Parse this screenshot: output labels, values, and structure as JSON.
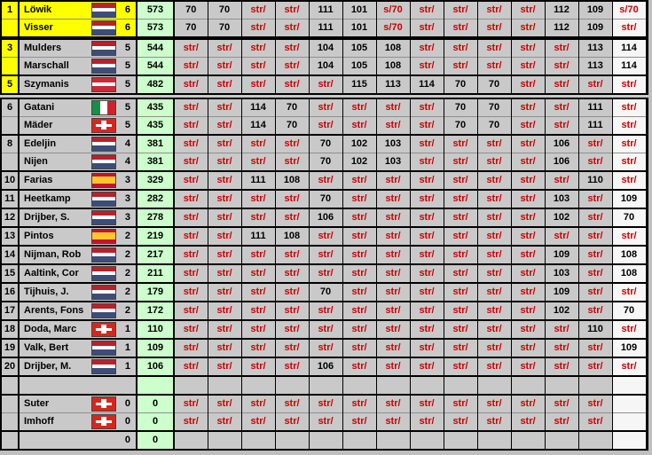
{
  "colors": {
    "page_bg": "#bfbfbf",
    "cell_grey": "#c9c9c9",
    "last_column_bg": "#f6f6f6",
    "score_green": "#ccffcc",
    "highlight_yellow": "#ffff00",
    "struck_red": "#cc0000",
    "text_black": "#000000"
  },
  "table": {
    "num_round_columns": 14,
    "struck_label": "str/",
    "rows": [
      {
        "rank": "1",
        "name": "Löwik",
        "flag": "nl",
        "count": "6",
        "score": "573",
        "rounds": [
          "70",
          "70",
          "str/",
          "str/",
          "111",
          "101",
          "s/70",
          "str/",
          "str/",
          "str/",
          "str/",
          "112",
          "109",
          "s/70"
        ],
        "highlight": "full",
        "sep": "none"
      },
      {
        "rank": "",
        "name": "Visser",
        "flag": "nl",
        "count": "6",
        "score": "573",
        "rounds": [
          "70",
          "70",
          "str/",
          "str/",
          "111",
          "101",
          "s/70",
          "str/",
          "str/",
          "str/",
          "str/",
          "112",
          "109",
          "str/"
        ],
        "highlight": "full",
        "sep": "pair"
      },
      {
        "rank": "3",
        "name": "Mulders",
        "flag": "nl",
        "count": "5",
        "score": "544",
        "rounds": [
          "str/",
          "str/",
          "str/",
          "str/",
          "104",
          "105",
          "108",
          "str/",
          "str/",
          "str/",
          "str/",
          "str/",
          "113",
          "114"
        ],
        "highlight": "rank",
        "sep": "thick"
      },
      {
        "rank": "",
        "name": "Marschall",
        "flag": "nl",
        "count": "5",
        "score": "544",
        "rounds": [
          "str/",
          "str/",
          "str/",
          "str/",
          "104",
          "105",
          "108",
          "str/",
          "str/",
          "str/",
          "str/",
          "str/",
          "113",
          "114"
        ],
        "highlight": "rank",
        "sep": "pair"
      },
      {
        "rank": "5",
        "name": "Szymanis",
        "flag": "at",
        "count": "5",
        "score": "482",
        "rounds": [
          "str/",
          "str/",
          "str/",
          "str/",
          "str/",
          "115",
          "113",
          "114",
          "70",
          "70",
          "str/",
          "str/",
          "str/",
          "str/"
        ],
        "highlight": "rank",
        "sep": "black"
      },
      {
        "rank": "6",
        "name": "Gatani",
        "flag": "it",
        "count": "5",
        "score": "435",
        "rounds": [
          "str/",
          "str/",
          "114",
          "70",
          "str/",
          "str/",
          "str/",
          "str/",
          "70",
          "70",
          "str/",
          "str/",
          "111",
          "str/"
        ],
        "highlight": "none",
        "sep": "double"
      },
      {
        "rank": "",
        "name": "Mäder",
        "flag": "ch",
        "count": "5",
        "score": "435",
        "rounds": [
          "str/",
          "str/",
          "114",
          "70",
          "str/",
          "str/",
          "str/",
          "str/",
          "70",
          "70",
          "str/",
          "str/",
          "111",
          "str/"
        ],
        "highlight": "none",
        "sep": "pair"
      },
      {
        "rank": "8",
        "name": "Edeljin",
        "flag": "nl",
        "count": "4",
        "score": "381",
        "rounds": [
          "str/",
          "str/",
          "str/",
          "str/",
          "70",
          "102",
          "103",
          "str/",
          "str/",
          "str/",
          "str/",
          "106",
          "str/",
          "str/"
        ],
        "highlight": "none",
        "sep": "black"
      },
      {
        "rank": "",
        "name": "Nijen",
        "flag": "nl",
        "count": "4",
        "score": "381",
        "rounds": [
          "str/",
          "str/",
          "str/",
          "str/",
          "70",
          "102",
          "103",
          "str/",
          "str/",
          "str/",
          "str/",
          "106",
          "str/",
          "str/"
        ],
        "highlight": "none",
        "sep": "pair"
      },
      {
        "rank": "10",
        "name": "Farias",
        "flag": "es",
        "count": "3",
        "score": "329",
        "rounds": [
          "str/",
          "str/",
          "111",
          "108",
          "str/",
          "str/",
          "str/",
          "str/",
          "str/",
          "str/",
          "str/",
          "str/",
          "110",
          "str/"
        ],
        "highlight": "none",
        "sep": "black"
      },
      {
        "rank": "11",
        "name": "Heetkamp",
        "flag": "nl",
        "count": "3",
        "score": "282",
        "rounds": [
          "str/",
          "str/",
          "str/",
          "str/",
          "70",
          "str/",
          "str/",
          "str/",
          "str/",
          "str/",
          "str/",
          "103",
          "str/",
          "109"
        ],
        "highlight": "none",
        "sep": "black"
      },
      {
        "rank": "12",
        "name": "Drijber, S.",
        "flag": "nl",
        "count": "3",
        "score": "278",
        "rounds": [
          "str/",
          "str/",
          "str/",
          "str/",
          "106",
          "str/",
          "str/",
          "str/",
          "str/",
          "str/",
          "str/",
          "102",
          "str/",
          "70"
        ],
        "highlight": "none",
        "sep": "black"
      },
      {
        "rank": "13",
        "name": "Pintos",
        "flag": "es",
        "count": "2",
        "score": "219",
        "rounds": [
          "str/",
          "str/",
          "111",
          "108",
          "str/",
          "str/",
          "str/",
          "str/",
          "str/",
          "str/",
          "str/",
          "str/",
          "str/",
          "str/"
        ],
        "highlight": "none",
        "sep": "black"
      },
      {
        "rank": "14",
        "name": "Nijman, Rob",
        "flag": "nl",
        "count": "2",
        "score": "217",
        "rounds": [
          "str/",
          "str/",
          "str/",
          "str/",
          "str/",
          "str/",
          "str/",
          "str/",
          "str/",
          "str/",
          "str/",
          "109",
          "str/",
          "108"
        ],
        "highlight": "none",
        "sep": "black"
      },
      {
        "rank": "15",
        "name": "Aaltink, Cor",
        "flag": "nl",
        "count": "2",
        "score": "211",
        "rounds": [
          "str/",
          "str/",
          "str/",
          "str/",
          "str/",
          "str/",
          "str/",
          "str/",
          "str/",
          "str/",
          "str/",
          "103",
          "str/",
          "108"
        ],
        "highlight": "none",
        "sep": "black"
      },
      {
        "rank": "16",
        "name": "Tijhuis, J.",
        "flag": "nl",
        "count": "2",
        "score": "179",
        "rounds": [
          "str/",
          "str/",
          "str/",
          "str/",
          "70",
          "str/",
          "str/",
          "str/",
          "str/",
          "str/",
          "str/",
          "109",
          "str/",
          "str/"
        ],
        "highlight": "none",
        "sep": "black"
      },
      {
        "rank": "17",
        "name": "Arents, Fons",
        "flag": "nl",
        "count": "2",
        "score": "172",
        "rounds": [
          "str/",
          "str/",
          "str/",
          "str/",
          "str/",
          "str/",
          "str/",
          "str/",
          "str/",
          "str/",
          "str/",
          "102",
          "str/",
          "70"
        ],
        "highlight": "none",
        "sep": "black"
      },
      {
        "rank": "18",
        "name": "Doda, Marc",
        "flag": "ch",
        "count": "1",
        "score": "110",
        "rounds": [
          "str/",
          "str/",
          "str/",
          "str/",
          "str/",
          "str/",
          "str/",
          "str/",
          "str/",
          "str/",
          "str/",
          "str/",
          "110",
          "str/"
        ],
        "highlight": "none",
        "sep": "black"
      },
      {
        "rank": "19",
        "name": "Valk, Bert",
        "flag": "nl",
        "count": "1",
        "score": "109",
        "rounds": [
          "str/",
          "str/",
          "str/",
          "str/",
          "str/",
          "str/",
          "str/",
          "str/",
          "str/",
          "str/",
          "str/",
          "str/",
          "str/",
          "109"
        ],
        "highlight": "none",
        "sep": "black"
      },
      {
        "rank": "20",
        "name": "Drijber, M.",
        "flag": "nl",
        "count": "1",
        "score": "106",
        "rounds": [
          "str/",
          "str/",
          "str/",
          "str/",
          "106",
          "str/",
          "str/",
          "str/",
          "str/",
          "str/",
          "str/",
          "str/",
          "str/",
          "str/"
        ],
        "highlight": "none",
        "sep": "black"
      },
      {
        "rank": "",
        "name": "",
        "flag": null,
        "count": "",
        "score": "",
        "rounds": [
          "",
          "",
          "",
          "",
          "",
          "",
          "",
          "",
          "",
          "",
          "",
          "",
          "",
          ""
        ],
        "highlight": "none",
        "sep": "black"
      },
      {
        "rank": "",
        "name": "Suter",
        "flag": "ch",
        "count": "0",
        "score": "0",
        "rounds": [
          "str/",
          "str/",
          "str/",
          "str/",
          "str/",
          "str/",
          "str/",
          "str/",
          "str/",
          "str/",
          "str/",
          "str/",
          "str/",
          ""
        ],
        "highlight": "none",
        "sep": "black"
      },
      {
        "rank": "",
        "name": "Imhoff",
        "flag": "ch",
        "count": "0",
        "score": "0",
        "rounds": [
          "str/",
          "str/",
          "str/",
          "str/",
          "str/",
          "str/",
          "str/",
          "str/",
          "str/",
          "str/",
          "str/",
          "str/",
          "str/",
          ""
        ],
        "highlight": "none",
        "sep": "pair"
      },
      {
        "rank": "",
        "name": "",
        "flag": null,
        "count": "0",
        "score": "0",
        "rounds": [
          "",
          "",
          "",
          "",
          "",
          "",
          "",
          "",
          "",
          "",
          "",
          "",
          "",
          ""
        ],
        "highlight": "none",
        "sep": "black"
      }
    ]
  }
}
